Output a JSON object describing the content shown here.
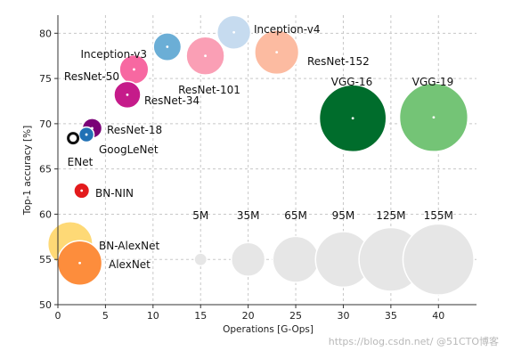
{
  "chart_data": {
    "type": "scatter",
    "xlabel": "Operations [G-Ops]",
    "ylabel": "Top-1 accuracy [%]",
    "xlim": [
      0,
      44
    ],
    "ylim": [
      50,
      82
    ],
    "x_ticks": [
      0,
      5,
      10,
      15,
      20,
      25,
      30,
      35,
      40
    ],
    "y_ticks": [
      50,
      55,
      60,
      65,
      70,
      75,
      80
    ],
    "grid": true,
    "points": [
      {
        "name": "Inception-v4",
        "x": 18.5,
        "y": 80.1,
        "size_m": 35,
        "color": "#c6dbef"
      },
      {
        "name": "Inception-v3",
        "x": 11.5,
        "y": 78.5,
        "size_m": 24,
        "color": "#6baed6"
      },
      {
        "name": "ResNet-152",
        "x": 23.0,
        "y": 77.9,
        "size_m": 60,
        "color": "#fcbba1"
      },
      {
        "name": "ResNet-101",
        "x": 15.5,
        "y": 77.5,
        "size_m": 45,
        "color": "#fa9fb5"
      },
      {
        "name": "ResNet-50",
        "x": 8.0,
        "y": 76.0,
        "size_m": 26,
        "color": "#f768a1"
      },
      {
        "name": "ResNet-34",
        "x": 7.3,
        "y": 73.2,
        "size_m": 22,
        "color": "#c51b8a"
      },
      {
        "name": "ResNet-18",
        "x": 3.6,
        "y": 69.5,
        "size_m": 12,
        "color": "#7a0177"
      },
      {
        "name": "GoogLeNet",
        "x": 3.0,
        "y": 68.8,
        "size_m": 7,
        "color": "#2171b5"
      },
      {
        "name": "ENet",
        "x": 1.6,
        "y": 68.4,
        "size_m": 0.4,
        "color": "#111111"
      },
      {
        "name": "VGG-16",
        "x": 31.0,
        "y": 70.6,
        "size_m": 138,
        "color": "#006d2c"
      },
      {
        "name": "VGG-19",
        "x": 39.5,
        "y": 70.7,
        "size_m": 144,
        "color": "#74c476"
      },
      {
        "name": "BN-NIN",
        "x": 2.5,
        "y": 62.6,
        "size_m": 7.5,
        "color": "#e31a1c"
      },
      {
        "name": "BN-AlexNet",
        "x": 1.3,
        "y": 56.7,
        "size_m": 62,
        "color": "#fed976"
      },
      {
        "name": "AlexNet",
        "x": 2.3,
        "y": 54.6,
        "size_m": 61,
        "color": "#fd8d3c"
      }
    ],
    "size_reference": [
      {
        "label": "5M",
        "x": 15,
        "y": 55,
        "size_m": 5
      },
      {
        "label": "35M",
        "x": 20,
        "y": 55,
        "size_m": 35
      },
      {
        "label": "65M",
        "x": 25,
        "y": 55,
        "size_m": 65
      },
      {
        "label": "95M",
        "x": 30,
        "y": 55,
        "size_m": 95
      },
      {
        "label": "125M",
        "x": 35,
        "y": 55,
        "size_m": 125
      },
      {
        "label": "155M",
        "x": 40,
        "y": 55,
        "size_m": 155
      }
    ],
    "reference_color": "#e6e6e6"
  },
  "watermark": "https://blog.csdn.net/ @51CTO博客"
}
